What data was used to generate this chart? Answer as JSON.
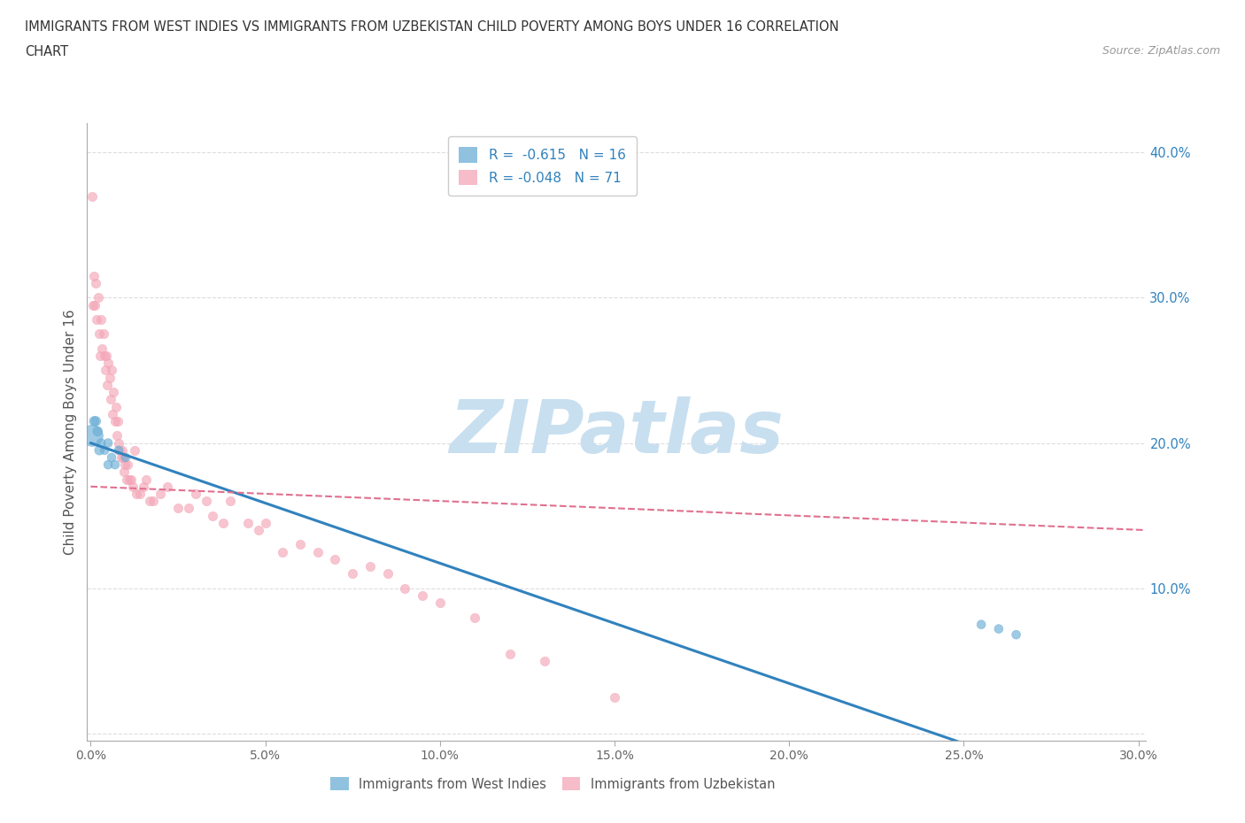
{
  "title_line1": "IMMIGRANTS FROM WEST INDIES VS IMMIGRANTS FROM UZBEKISTAN CHILD POVERTY AMONG BOYS UNDER 16 CORRELATION",
  "title_line2": "CHART",
  "source": "Source: ZipAtlas.com",
  "ylabel": "Child Poverty Among Boys Under 16",
  "xlim": [
    -0.001,
    0.302
  ],
  "ylim": [
    -0.005,
    0.42
  ],
  "xticks": [
    0.0,
    0.05,
    0.1,
    0.15,
    0.2,
    0.25,
    0.3
  ],
  "yticks": [
    0.0,
    0.1,
    0.2,
    0.3,
    0.4
  ],
  "xticklabels": [
    "0.0%",
    "5.0%",
    "10.0%",
    "15.0%",
    "20.0%",
    "25.0%",
    "30.0%"
  ],
  "yticklabels_right": [
    "",
    "10.0%",
    "20.0%",
    "30.0%",
    "40.0%"
  ],
  "legend_label_blue": "R =  -0.615   N = 16",
  "legend_label_pink": "R = -0.048   N = 71",
  "legend_bottom_blue": "Immigrants from West Indies",
  "legend_bottom_pink": "Immigrants from Uzbekistan",
  "blue_line_x": [
    0.0,
    0.302
  ],
  "blue_line_y": [
    0.2,
    -0.05
  ],
  "pink_line_x": [
    0.0,
    0.302
  ],
  "pink_line_y": [
    0.17,
    0.14
  ],
  "blue_scatter_x": [
    0.0005,
    0.001,
    0.0015,
    0.002,
    0.0025,
    0.003,
    0.004,
    0.005,
    0.006,
    0.007,
    0.01,
    0.255,
    0.26,
    0.265,
    0.005,
    0.008
  ],
  "blue_scatter_y": [
    0.205,
    0.215,
    0.215,
    0.208,
    0.195,
    0.2,
    0.195,
    0.185,
    0.19,
    0.185,
    0.19,
    0.075,
    0.072,
    0.068,
    0.2,
    0.195
  ],
  "blue_scatter_size": [
    300,
    60,
    60,
    60,
    60,
    50,
    50,
    50,
    50,
    50,
    50,
    50,
    50,
    50,
    50,
    50
  ],
  "pink_scatter_x": [
    0.0003,
    0.0006,
    0.0009,
    0.0012,
    0.0015,
    0.0018,
    0.0021,
    0.0024,
    0.0027,
    0.003,
    0.0033,
    0.0036,
    0.0039,
    0.0042,
    0.0045,
    0.0048,
    0.0051,
    0.0054,
    0.0057,
    0.006,
    0.0063,
    0.0066,
    0.0069,
    0.0072,
    0.0075,
    0.0078,
    0.0081,
    0.0084,
    0.0087,
    0.009,
    0.0093,
    0.0096,
    0.0099,
    0.0102,
    0.0105,
    0.011,
    0.0115,
    0.012,
    0.0125,
    0.013,
    0.014,
    0.015,
    0.016,
    0.017,
    0.018,
    0.02,
    0.022,
    0.025,
    0.028,
    0.03,
    0.033,
    0.035,
    0.038,
    0.04,
    0.045,
    0.048,
    0.05,
    0.055,
    0.06,
    0.065,
    0.07,
    0.075,
    0.08,
    0.085,
    0.09,
    0.095,
    0.1,
    0.11,
    0.12,
    0.13,
    0.15
  ],
  "pink_scatter_y": [
    0.37,
    0.295,
    0.315,
    0.295,
    0.31,
    0.285,
    0.3,
    0.275,
    0.26,
    0.285,
    0.265,
    0.275,
    0.26,
    0.25,
    0.26,
    0.24,
    0.255,
    0.245,
    0.23,
    0.25,
    0.22,
    0.235,
    0.215,
    0.225,
    0.205,
    0.215,
    0.2,
    0.195,
    0.19,
    0.195,
    0.19,
    0.18,
    0.185,
    0.175,
    0.185,
    0.175,
    0.175,
    0.17,
    0.195,
    0.165,
    0.165,
    0.17,
    0.175,
    0.16,
    0.16,
    0.165,
    0.17,
    0.155,
    0.155,
    0.165,
    0.16,
    0.15,
    0.145,
    0.16,
    0.145,
    0.14,
    0.145,
    0.125,
    0.13,
    0.125,
    0.12,
    0.11,
    0.115,
    0.11,
    0.1,
    0.095,
    0.09,
    0.08,
    0.055,
    0.05,
    0.025
  ],
  "watermark_text": "ZIPatlas",
  "watermark_color": "#c8dff0",
  "bg_color": "#ffffff",
  "grid_color": "#dddddd",
  "blue_scatter_color": "#6baed6",
  "pink_scatter_color": "#f4a6b8",
  "blue_line_color": "#3182bd",
  "pink_line_color": "#e07090",
  "right_tick_color": "#3182bd",
  "title_color": "#333333",
  "source_color": "#999999",
  "xlabel_tick_color": "#666666"
}
